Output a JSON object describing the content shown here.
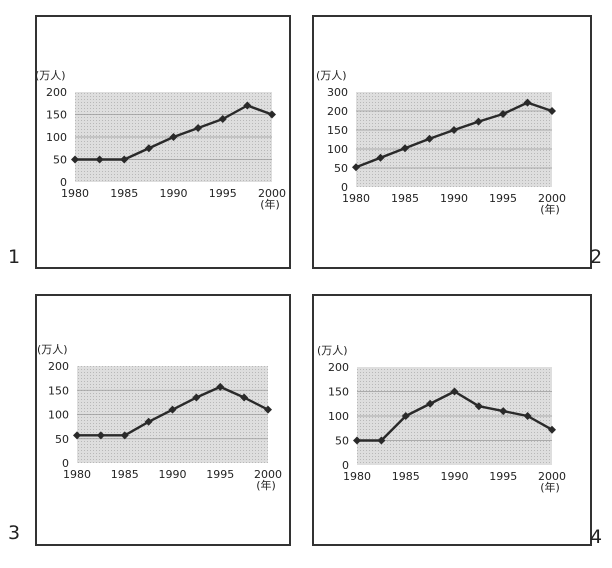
{
  "chart_data": [
    {
      "type": "line",
      "panel_label": "1",
      "ylabel": "(万人)",
      "xlabel": "(年)",
      "x": [
        1980,
        1982.5,
        1985,
        1987.5,
        1990,
        1992.5,
        1995,
        1997.5,
        2000
      ],
      "values": [
        50,
        50,
        50,
        75,
        100,
        120,
        140,
        170,
        150
      ],
      "xticks": [
        "1980",
        "1985",
        "1990",
        "1995",
        "2000"
      ],
      "yticks": [
        "0",
        "50",
        "100",
        "150",
        "200"
      ],
      "ylim": [
        0,
        200
      ],
      "grid": true
    },
    {
      "type": "line",
      "panel_label": "2",
      "ylabel": "(万人)",
      "xlabel": "(年)",
      "x": [
        1980,
        1982.5,
        1985,
        1987.5,
        1990,
        1992.5,
        1995,
        1997.5,
        2000
      ],
      "values": [
        52,
        77,
        102,
        127,
        150,
        172,
        192,
        222,
        200
      ],
      "xticks": [
        "1980",
        "1985",
        "1990",
        "1995",
        "2000"
      ],
      "yticks": [
        "0",
        "50",
        "100",
        "150",
        "200",
        "300"
      ],
      "ylim": [
        0,
        250
      ],
      "grid": true
    },
    {
      "type": "line",
      "panel_label": "3",
      "ylabel": "(万人)",
      "xlabel": "(年)",
      "x": [
        1980,
        1982.5,
        1985,
        1987.5,
        1990,
        1992.5,
        1995,
        1997.5,
        2000
      ],
      "values": [
        57,
        57,
        57,
        85,
        110,
        135,
        157,
        135,
        110
      ],
      "xticks": [
        "1980",
        "1985",
        "1990",
        "1995",
        "2000"
      ],
      "yticks": [
        "0",
        "50",
        "100",
        "150",
        "200"
      ],
      "ylim": [
        0,
        200
      ],
      "grid": true
    },
    {
      "type": "line",
      "panel_label": "4",
      "ylabel": "(万人)",
      "xlabel": "(年)",
      "x": [
        1980,
        1982.5,
        1985,
        1987.5,
        1990,
        1992.5,
        1995,
        1997.5,
        2000
      ],
      "values": [
        50,
        50,
        100,
        125,
        150,
        120,
        110,
        100,
        72
      ],
      "xticks": [
        "1980",
        "1985",
        "1990",
        "1995",
        "2000"
      ],
      "yticks": [
        "0",
        "50",
        "100",
        "150",
        "200"
      ],
      "ylim": [
        0,
        200
      ],
      "grid": true
    }
  ],
  "colors": {
    "line": "#2a2a2a",
    "plot_bg": "#d9d9d9",
    "grid": "#9a9a9a",
    "frame": "#333333"
  }
}
